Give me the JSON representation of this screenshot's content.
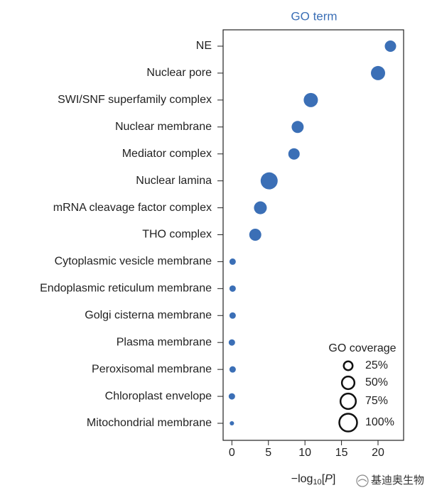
{
  "chart_data": {
    "type": "bubble",
    "title": "GO term",
    "categories": [
      "NE",
      "Nuclear pore",
      "SWI/SNF superfamily complex",
      "Nuclear membrane",
      "Mediator complex",
      "Nuclear lamina",
      "mRNA cleavage factor complex",
      "THO complex",
      "Cytoplasmic vesicle membrane",
      "Endoplasmic reticulum membrane",
      "Golgi cisterna membrane",
      "Plasma membrane",
      "Peroxisomal membrane",
      "Chloroplast envelope",
      "Mitochondrial membrane"
    ],
    "values": [
      21.7,
      20.0,
      10.8,
      9.0,
      8.5,
      5.1,
      3.9,
      3.2,
      0.1,
      0.1,
      0.1,
      0.0,
      0.1,
      0.0,
      0.0
    ],
    "sizes": [
      41,
      64,
      64,
      46,
      41,
      92,
      52,
      46,
      13,
      13,
      13,
      13,
      13,
      13,
      6
    ],
    "color": "#3b6fb6",
    "xlim": [
      -1.2,
      23.5
    ],
    "xticks": [
      0,
      5,
      10,
      15,
      20
    ],
    "xlabel_parts": [
      "−log",
      "10",
      "[",
      "P",
      "]"
    ],
    "size_legend": {
      "title": "GO coverage",
      "entries": [
        {
          "value": 25,
          "label": "25%"
        },
        {
          "value": 50,
          "label": "50%"
        },
        {
          "value": 75,
          "label": "75%"
        },
        {
          "value": 100,
          "label": "100%"
        }
      ]
    },
    "watermark": "基迪奥生物"
  }
}
